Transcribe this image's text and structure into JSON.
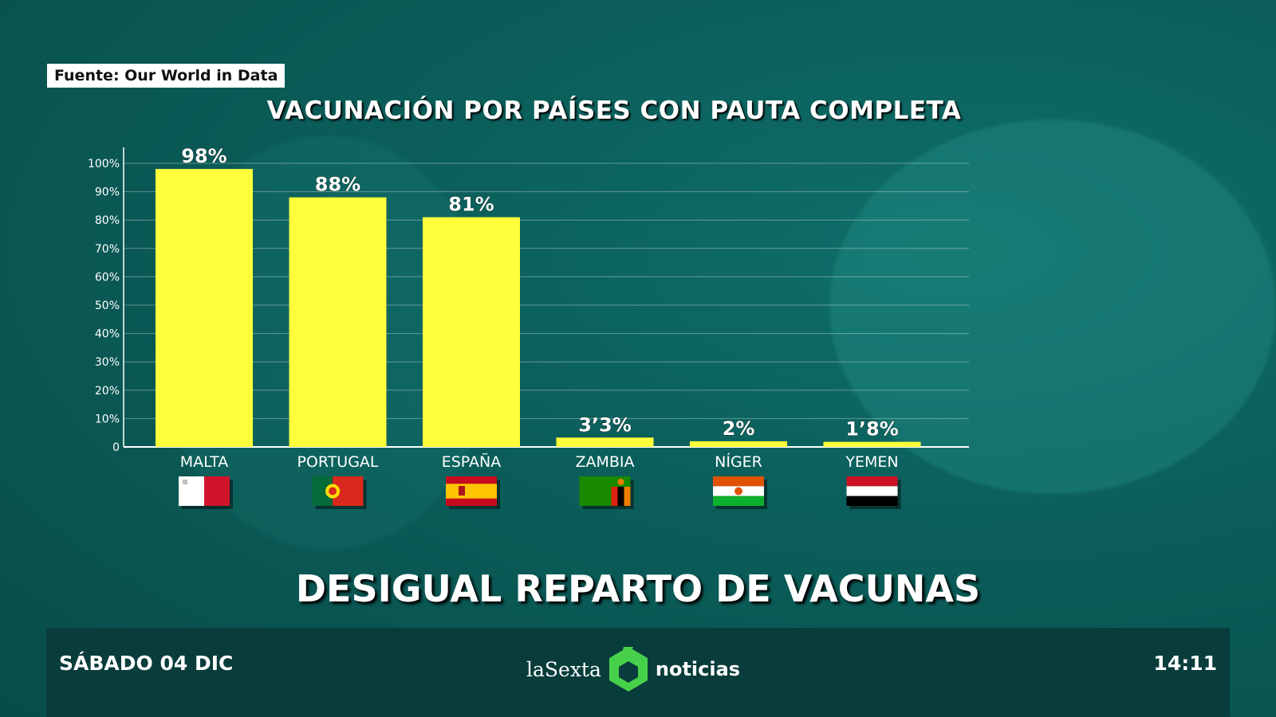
{
  "source": "Fuente: Our World in Data",
  "headline": "DESIGUAL REPARTO DE VACUNAS",
  "ticker": {
    "date": "SÁBADO 04 DIC",
    "brand_left": "laSexta",
    "brand_right": "noticias",
    "time": "14:11"
  },
  "colors": {
    "bar": "#ffff3b",
    "text": "#ffffff",
    "ticker_bg": "#083d3b"
  },
  "chart_data": {
    "type": "bar",
    "title": "VACUNACIÓN POR PAÍSES CON PAUTA COMPLETA",
    "categories": [
      "MALTA",
      "PORTUGAL",
      "ESPAÑA",
      "ZAMBIA",
      "NÍGER",
      "YEMEN"
    ],
    "values": [
      98,
      88,
      81,
      3.3,
      2,
      1.8
    ],
    "value_labels": [
      "98%",
      "88%",
      "81%",
      "3’3%",
      "2%",
      "1’8%"
    ],
    "ylim": [
      0,
      100
    ],
    "yticks": [
      "0",
      "10%",
      "20%",
      "30%",
      "40%",
      "50%",
      "60%",
      "70%",
      "80%",
      "90%",
      "100%"
    ],
    "grid": true,
    "flags": [
      "malta-flag",
      "portugal-flag",
      "spain-flag",
      "zambia-flag",
      "niger-flag",
      "yemen-flag"
    ]
  }
}
